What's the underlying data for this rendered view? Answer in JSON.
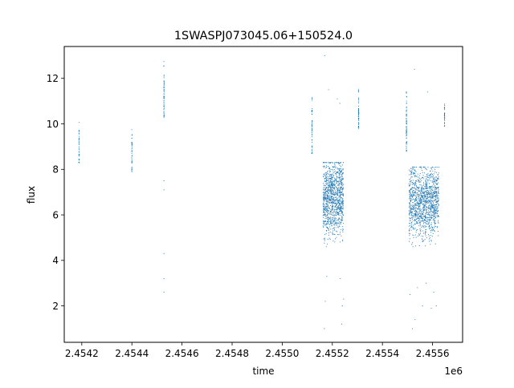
{
  "chart_data": {
    "type": "scatter",
    "title": "1SWASPJ073045.06+150524.0",
    "xlabel": "time",
    "ylabel": "flux",
    "x_offset_label": "1e6",
    "xlim": [
      2.45413,
      2.45572
    ],
    "ylim": [
      0.4,
      13.4
    ],
    "x_ticks": [
      2.4542,
      2.4544,
      2.4546,
      2.4548,
      2.455,
      2.4552,
      2.4554,
      2.4556
    ],
    "x_tick_labels": [
      "2.4542",
      "2.4544",
      "2.4546",
      "2.4548",
      "2.4550",
      "2.4552",
      "2.4554",
      "2.4556"
    ],
    "y_ticks": [
      2,
      4,
      6,
      8,
      10,
      12
    ],
    "y_tick_labels": [
      "2",
      "4",
      "6",
      "8",
      "10",
      "12"
    ],
    "grid": false,
    "marker_color": "#1f77b4",
    "series": [
      {
        "clusters": [
          {
            "x": 2.454189,
            "y_min": 8.3,
            "y_max": 10.5,
            "center": 9.0,
            "n": 40,
            "spread": 1.2e-06
          },
          {
            "x": 2.4544,
            "y_min": 7.9,
            "y_max": 9.8,
            "center": 8.7,
            "n": 40,
            "spread": 1.2e-06
          },
          {
            "x": 2.454528,
            "y_min": 10.3,
            "y_max": 13.0,
            "center": 11.0,
            "n": 60,
            "spread": 1.2e-06
          },
          {
            "x": 2.455119,
            "y_min": 8.7,
            "y_max": 11.2,
            "center": 9.9,
            "n": 50,
            "spread": 1.5e-06
          },
          {
            "x": 2.455305,
            "y_min": 9.8,
            "y_max": 11.5,
            "center": 10.5,
            "n": 50,
            "spread": 1.5e-06
          },
          {
            "x": 2.455496,
            "y_min": 8.8,
            "y_max": 11.5,
            "center": 10.0,
            "n": 70,
            "spread": 1.8e-06
          },
          {
            "x": 2.455648,
            "y_min": 9.9,
            "y_max": 10.9,
            "center": 10.4,
            "n": 30,
            "spread": 1.2e-06
          }
        ],
        "bands": [
          {
            "x_start": 2.455163,
            "x_end": 2.455245,
            "y_min": 4.6,
            "y_max": 8.3,
            "center": 6.8,
            "n": 1100
          },
          {
            "x_start": 2.455506,
            "x_end": 2.455625,
            "y_min": 4.6,
            "y_max": 8.1,
            "center": 6.6,
            "n": 1300
          }
        ],
        "outliers": [
          {
            "x": 2.454528,
            "y": 4.3
          },
          {
            "x": 2.454528,
            "y": 3.2
          },
          {
            "x": 2.454528,
            "y": 2.6
          },
          {
            "x": 2.454528,
            "y": 7.1
          },
          {
            "x": 2.454528,
            "y": 7.5
          },
          {
            "x": 2.455168,
            "y": 1.0
          },
          {
            "x": 2.455172,
            "y": 2.2
          },
          {
            "x": 2.455178,
            "y": 3.3
          },
          {
            "x": 2.455185,
            "y": 11.5
          },
          {
            "x": 2.45517,
            "y": 13.0
          },
          {
            "x": 2.45522,
            "y": 11.1
          },
          {
            "x": 2.45523,
            "y": 10.9
          },
          {
            "x": 2.45524,
            "y": 2.0
          },
          {
            "x": 2.455238,
            "y": 1.2
          },
          {
            "x": 2.455245,
            "y": 2.3
          },
          {
            "x": 2.455232,
            "y": 3.2
          },
          {
            "x": 2.45551,
            "y": 2.5
          },
          {
            "x": 2.45552,
            "y": 1.0
          },
          {
            "x": 2.45553,
            "y": 1.4
          },
          {
            "x": 2.45554,
            "y": 2.8
          },
          {
            "x": 2.45556,
            "y": 2.0
          },
          {
            "x": 2.455575,
            "y": 3.0
          },
          {
            "x": 2.455595,
            "y": 1.9
          },
          {
            "x": 2.455605,
            "y": 2.6
          },
          {
            "x": 2.455615,
            "y": 2.0
          },
          {
            "x": 2.455528,
            "y": 12.4
          },
          {
            "x": 2.45558,
            "y": 11.4
          }
        ]
      }
    ]
  }
}
